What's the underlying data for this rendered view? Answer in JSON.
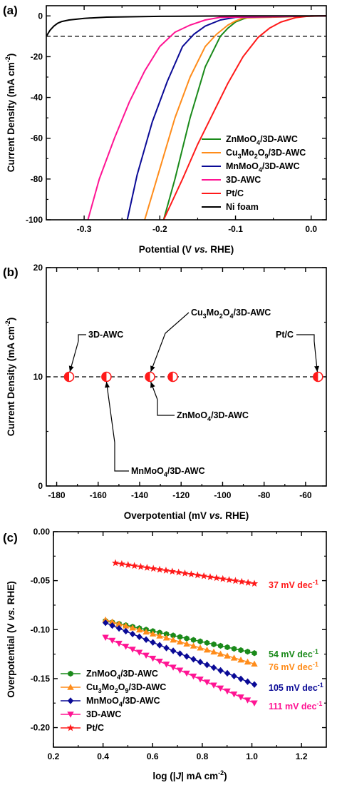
{
  "panels": {
    "a": {
      "label": "(a)"
    },
    "b": {
      "label": "(b)"
    },
    "c": {
      "label": "(c)"
    }
  },
  "colors": {
    "green": "#1a8a1a",
    "orange": "#ff8c1a",
    "navy": "#0a0a96",
    "magenta": "#ff1493",
    "red": "#ff1a1a",
    "black": "#000000"
  },
  "chart_data": [
    {
      "id": "a",
      "type": "line",
      "xlabel_parts": [
        "Potential (V ",
        "vs.",
        " RHE)"
      ],
      "ylabel": "Current Density (mA cm",
      "ylabel_sup": "-2",
      "ylabel_close": ")",
      "xlim": [
        -0.35,
        0.02
      ],
      "ylim": [
        -100,
        5
      ],
      "xticks": [
        -0.3,
        -0.2,
        -0.1,
        0.0
      ],
      "xticklabels": [
        "-0.3",
        "-0.2",
        "-0.1",
        "0.0"
      ],
      "yticks": [
        0,
        -20,
        -40,
        -60,
        -80,
        -100
      ],
      "yticklabels": [
        "0",
        "-20",
        "-40",
        "-60",
        "-80",
        "-100"
      ],
      "reference_line_y": -10,
      "legend_position": "lower-right",
      "series": [
        {
          "key": "znmoo4",
          "name": "ZnMoO4/3D-AWC",
          "color": "#1a8a1a",
          "x": [
            -0.195,
            -0.18,
            -0.16,
            -0.14,
            -0.12,
            -0.11,
            -0.1,
            -0.09,
            -0.08,
            0.02
          ],
          "y": [
            -100,
            -80,
            -50,
            -25,
            -10,
            -6,
            -3,
            -1.5,
            -0.5,
            0
          ]
        },
        {
          "key": "cu3mo2o9",
          "name": "Cu3Mo2O9/3D-AWC",
          "color": "#ff8c1a",
          "x": [
            -0.22,
            -0.2,
            -0.18,
            -0.16,
            -0.14,
            -0.125,
            -0.11,
            -0.1,
            -0.09,
            0.02
          ],
          "y": [
            -100,
            -75,
            -50,
            -30,
            -15,
            -9,
            -4.5,
            -2.5,
            -1,
            0
          ]
        },
        {
          "key": "mnmoo4",
          "name": "MnMoO4/3D-AWC",
          "color": "#0a0a96",
          "x": [
            -0.243,
            -0.23,
            -0.21,
            -0.19,
            -0.17,
            -0.155,
            -0.14,
            -0.12,
            -0.1,
            0.02
          ],
          "y": [
            -100,
            -78,
            -52,
            -32,
            -15,
            -9,
            -5,
            -2,
            -0.7,
            0
          ]
        },
        {
          "key": "awc",
          "name": "3D-AWC",
          "color": "#ff1493",
          "x": [
            -0.295,
            -0.28,
            -0.26,
            -0.24,
            -0.22,
            -0.2,
            -0.18,
            -0.16,
            -0.14,
            -0.12,
            0.02
          ],
          "y": [
            -100,
            -80,
            -60,
            -42,
            -27,
            -15,
            -8,
            -4.5,
            -2,
            -0.7,
            0
          ]
        },
        {
          "key": "ptc",
          "name": "Pt/C",
          "color": "#ff1a1a",
          "x": [
            -0.195,
            -0.17,
            -0.15,
            -0.13,
            -0.11,
            -0.09,
            -0.07,
            -0.055,
            -0.04,
            -0.02,
            0.0,
            0.02
          ],
          "y": [
            -100,
            -80,
            -63,
            -48,
            -33,
            -20,
            -10.5,
            -6,
            -3,
            -0.8,
            0,
            0
          ]
        },
        {
          "key": "nifoam",
          "name": "Ni foam",
          "color": "#000000",
          "x": [
            -0.35,
            -0.345,
            -0.34,
            -0.335,
            -0.33,
            -0.32,
            -0.3,
            -0.27,
            -0.2,
            -0.1,
            0.02
          ],
          "y": [
            -10,
            -7,
            -5,
            -3.6,
            -2.8,
            -2,
            -1.2,
            -0.6,
            -0.2,
            0,
            0
          ]
        }
      ]
    },
    {
      "id": "b",
      "type": "scatter",
      "xlabel_parts": [
        "Overpotential (mV ",
        "vs.",
        " RHE)"
      ],
      "ylabel": "Current Density (mA cm",
      "ylabel_sup": "-2",
      "ylabel_close": ")",
      "xlim": [
        -185,
        -50
      ],
      "ylim": [
        0,
        20
      ],
      "xticks": [
        -180,
        -160,
        -140,
        -120,
        -100,
        -80,
        -60
      ],
      "xticklabels": [
        "-180",
        "-160",
        "-140",
        "-120",
        "-100",
        "-80",
        "-60"
      ],
      "yticks": [
        0,
        10,
        20
      ],
      "yticklabels": [
        "0",
        "10",
        "20"
      ],
      "reference_line_y": 10,
      "marker_color": "#ff1a1a",
      "points": [
        {
          "x": -174,
          "y": 10
        },
        {
          "x": -156,
          "y": 10
        },
        {
          "x": -135,
          "y": 10
        },
        {
          "x": -124,
          "y": 10
        },
        {
          "x": -54,
          "y": 10
        }
      ],
      "annotations": [
        {
          "key": "awc",
          "text": "3D-AWC",
          "sub": "",
          "text2": "",
          "sub2": "",
          "text3": ""
        },
        {
          "key": "mnmoo4",
          "text": "MnMoO",
          "sub": "4",
          "text2": "/3D-AWC",
          "sub2": "",
          "text3": ""
        },
        {
          "key": "cu3mo2o9",
          "text": "Cu",
          "sub": "3",
          "text2": "Mo",
          "sub2": "2",
          "text3": "O"
        },
        {
          "key": "znmoo4",
          "text": "ZnMoO",
          "sub": "4",
          "text2": "/3D-AWC",
          "sub2": "",
          "text3": ""
        },
        {
          "key": "ptc",
          "text": "Pt/C",
          "sub": "",
          "text2": "",
          "sub2": "",
          "text3": ""
        }
      ],
      "cu_annotation_tail": {
        "sub": "4",
        "text": "/3D-AWC"
      }
    },
    {
      "id": "c",
      "type": "line",
      "xlabel": "log (|",
      "xlabel_italic": "J",
      "xlabel_tail": "| mA cm",
      "xlabel_sup": "-2",
      "xlabel_close": ")",
      "ylabel_parts": [
        "Overpotential (V ",
        "vs.",
        " RHE)"
      ],
      "xlim": [
        0.2,
        1.3
      ],
      "ylim": [
        -0.22,
        0.0
      ],
      "xticks": [
        0.2,
        0.4,
        0.6,
        0.8,
        1.0,
        1.2
      ],
      "xticklabels": [
        "0.2",
        "0.4",
        "0.6",
        "0.8",
        "1.0",
        "1.2"
      ],
      "yticks": [
        0.0,
        -0.05,
        -0.1,
        -0.15,
        -0.2
      ],
      "yticklabels": [
        "0.00",
        "-0.05",
        "-0.10",
        "-0.15",
        "-0.20"
      ],
      "legend_position": "lower-left",
      "series": [
        {
          "key": "znmoo4",
          "name": "ZnMoO4/3D-AWC",
          "color": "#1a8a1a",
          "marker": "hexagon",
          "x_start": 0.41,
          "x_end": 1.01,
          "y_start": -0.091,
          "y_end": -0.124,
          "slope_label": "54 mV dec",
          "slope_sup": "-1"
        },
        {
          "key": "cu3mo2o9",
          "name": "Cu3Mo2O9/3D-AWC",
          "color": "#ff8c1a",
          "marker": "triangle-up",
          "x_start": 0.41,
          "x_end": 1.01,
          "y_start": -0.09,
          "y_end": -0.135,
          "slope_label": "76 mV dec",
          "slope_sup": "-1"
        },
        {
          "key": "mnmoo4",
          "name": "MnMoO4/3D-AWC",
          "color": "#0a0a96",
          "marker": "diamond",
          "x_start": 0.41,
          "x_end": 1.01,
          "y_start": -0.093,
          "y_end": -0.156,
          "slope_label": "105 mV dec",
          "slope_sup": "-1"
        },
        {
          "key": "awc",
          "name": "3D-AWC",
          "color": "#ff1493",
          "marker": "triangle-down",
          "x_start": 0.41,
          "x_end": 1.01,
          "y_start": -0.108,
          "y_end": -0.175,
          "slope_label": "111 mV dec",
          "slope_sup": "-1"
        },
        {
          "key": "ptc",
          "name": "Pt/C",
          "color": "#ff1a1a",
          "marker": "star",
          "x_start": 0.45,
          "x_end": 1.01,
          "y_start": -0.032,
          "y_end": -0.053,
          "slope_label": "37 mV dec",
          "slope_sup": "-1"
        }
      ]
    }
  ],
  "legend": {
    "a": [
      {
        "key": "znmoo4",
        "parts": [
          "ZnMoO",
          "4",
          "/3D-AWC"
        ],
        "color": "#1a8a1a"
      },
      {
        "key": "cu3mo2o9",
        "parts": [
          "Cu",
          "3",
          "Mo",
          "2",
          "O",
          "9",
          "/3D-AWC"
        ],
        "color": "#ff8c1a"
      },
      {
        "key": "mnmoo4",
        "parts": [
          "MnMoO",
          "4",
          "/3D-AWC"
        ],
        "color": "#0a0a96"
      },
      {
        "key": "awc",
        "parts": [
          "3D-AWC"
        ],
        "color": "#ff1493"
      },
      {
        "key": "ptc",
        "parts": [
          "Pt/C"
        ],
        "color": "#ff1a1a"
      },
      {
        "key": "nifoam",
        "parts": [
          "Ni foam"
        ],
        "color": "#000000"
      }
    ],
    "c": [
      {
        "key": "znmoo4",
        "parts": [
          "ZnMoO",
          "4",
          "/3D-AWC"
        ],
        "color": "#1a8a1a"
      },
      {
        "key": "cu3mo2o9",
        "parts": [
          "Cu",
          "3",
          "Mo",
          "2",
          "O",
          "9",
          "/3D-AWC"
        ],
        "color": "#ff8c1a"
      },
      {
        "key": "mnmoo4",
        "parts": [
          "MnMoO",
          "4",
          "/3D-AWC"
        ],
        "color": "#0a0a96"
      },
      {
        "key": "awc",
        "parts": [
          "3D-AWC"
        ],
        "color": "#ff1493"
      },
      {
        "key": "ptc",
        "parts": [
          "Pt/C"
        ],
        "color": "#ff1a1a"
      }
    ]
  }
}
